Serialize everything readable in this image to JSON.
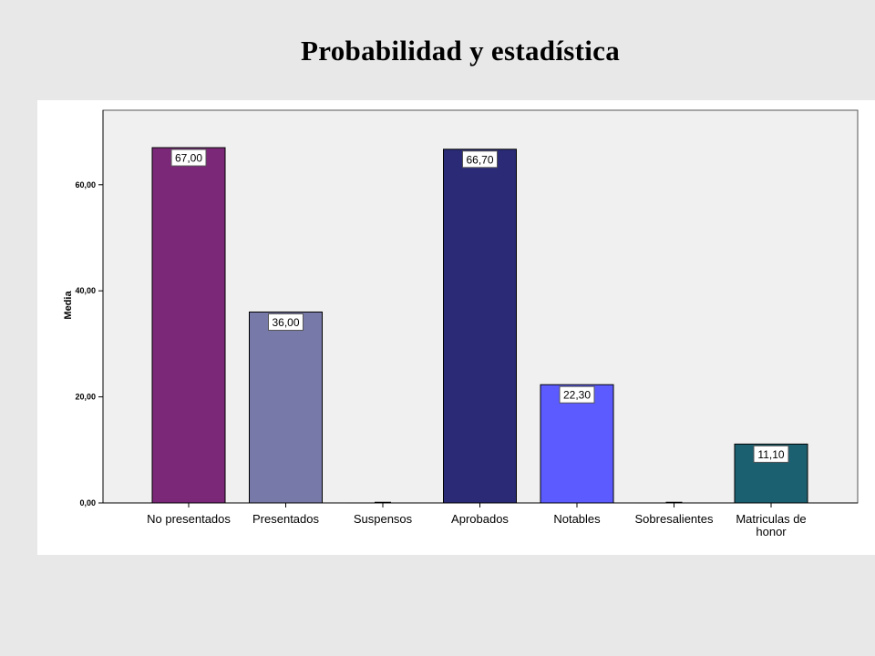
{
  "slide": {
    "title": "Probabilidad y estadística"
  },
  "chart_data": {
    "type": "bar",
    "ylabel": "Media",
    "xlabel": "",
    "ylim": [
      0,
      72
    ],
    "yticks": [
      0,
      20,
      40,
      60
    ],
    "ytick_labels": [
      "0,00",
      "20,00",
      "40,00",
      "60,00"
    ],
    "categories": [
      "No presentados",
      "Presentados",
      "Suspensos",
      "Aprobados",
      "Notables",
      "Sobresalientes",
      "Matriculas de honor"
    ],
    "category_lines": [
      [
        "No presentados"
      ],
      [
        "Presentados"
      ],
      [
        "Suspensos"
      ],
      [
        "Aprobados"
      ],
      [
        "Notables"
      ],
      [
        "Sobresalientes"
      ],
      [
        "Matriculas de",
        "honor"
      ]
    ],
    "values": [
      67.0,
      36.0,
      0,
      66.7,
      22.3,
      0,
      11.1
    ],
    "data_labels": [
      "67,00",
      "36,00",
      "",
      "66,70",
      "22,30",
      "",
      "11,10"
    ],
    "colors": [
      "#7b2878",
      "#7779a8",
      "#2a2a76",
      "#2a2a76",
      "#5b5bff",
      "#5b5bff",
      "#1b6070"
    ],
    "grid": false,
    "legend": "none"
  }
}
